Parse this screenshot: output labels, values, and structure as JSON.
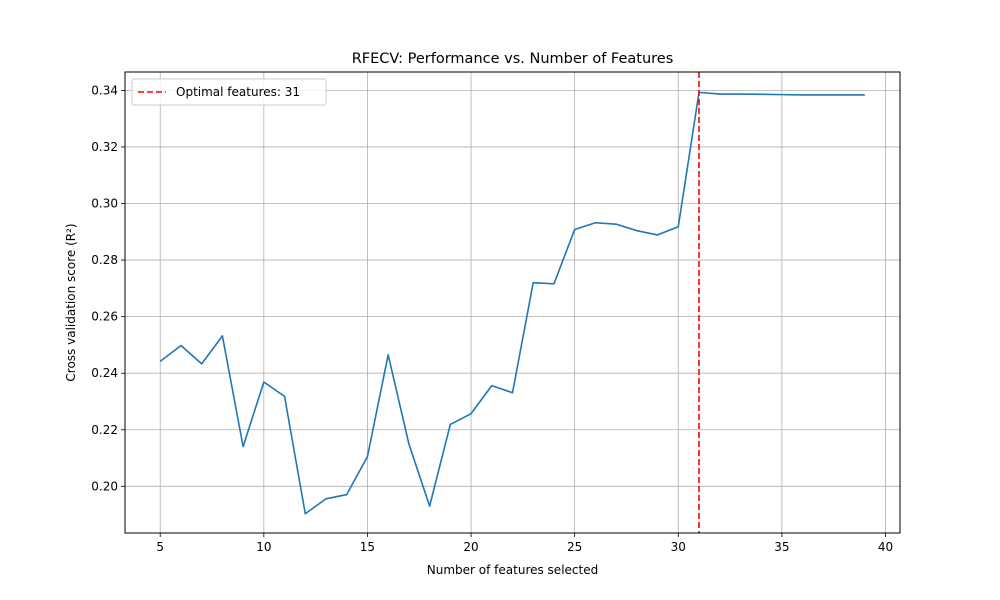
{
  "chart_data": {
    "type": "line",
    "title": "RFECV: Performance vs. Number of Features",
    "xlabel": "Number of features selected",
    "ylabel": "Cross validation score (R²)",
    "xlim": [
      3.3,
      40.7
    ],
    "ylim": [
      0.1835,
      0.3465
    ],
    "x_ticks": [
      5,
      10,
      15,
      20,
      25,
      30,
      35,
      40
    ],
    "y_ticks": [
      0.2,
      0.22,
      0.24,
      0.26,
      0.28,
      0.3,
      0.32,
      0.34
    ],
    "grid": true,
    "legend_position": "top-left",
    "series": [
      {
        "color": "#1f77b4",
        "x": [
          5,
          6,
          7,
          8,
          9,
          10,
          11,
          12,
          13,
          14,
          15,
          16,
          17,
          18,
          19,
          20,
          21,
          22,
          23,
          24,
          25,
          26,
          27,
          28,
          29,
          30,
          31,
          32,
          33,
          34,
          35,
          36,
          37,
          38,
          39
        ],
        "y": [
          0.2442,
          0.2498,
          0.2433,
          0.2532,
          0.2141,
          0.2369,
          0.2318,
          0.1903,
          0.1956,
          0.1971,
          0.2105,
          0.2465,
          0.215,
          0.193,
          0.2219,
          0.2257,
          0.2356,
          0.2331,
          0.272,
          0.2716,
          0.2908,
          0.2932,
          0.2927,
          0.2904,
          0.2889,
          0.2918,
          0.3393,
          0.3387,
          0.3387,
          0.3386,
          0.3385,
          0.3384,
          0.3384,
          0.3384,
          0.3384
        ]
      }
    ],
    "reference_line": {
      "orientation": "vertical",
      "x": 31,
      "color": "#ff0000",
      "style": "dashed",
      "legend_label": "Optimal features: 31"
    }
  }
}
